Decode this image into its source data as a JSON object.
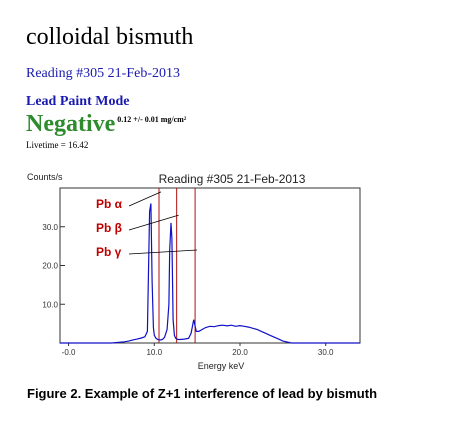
{
  "sample": {
    "name": "colloidal bismuth",
    "reading": "Reading #305 21-Feb-2013",
    "mode": "Lead Paint Mode",
    "result": "Negative",
    "result_value": "0.12 +/- 0.01 mg/cm²",
    "livetime": "Livetime = 16.42"
  },
  "caption": "Figure 2. Example of Z+1 interference of lead by bismuth",
  "colors": {
    "spectrum": "#1010c8",
    "markers": "#b01010",
    "labels": "#c00000",
    "result": "#2e8b2e"
  },
  "chart_data": {
    "type": "line",
    "title": "Reading #305 21-Feb-2013",
    "ylabel": "Counts/s",
    "xlabel": "Energy keV",
    "xlim": [
      -1,
      34
    ],
    "ylim": [
      0,
      40
    ],
    "xticks": [
      "-0.0",
      "10.0",
      "20.0",
      "30.0"
    ],
    "yticks": [
      "10.0",
      "20.0",
      "30.0"
    ],
    "grid": false,
    "markers_kev": [
      10.55,
      12.61,
      14.76
    ],
    "annotations": [
      {
        "text": "Pb α",
        "target_kev": 10.55,
        "target_y": 39
      },
      {
        "text": "Pb β",
        "target_kev": 12.61,
        "target_y": 33
      },
      {
        "text": "Pb γ",
        "target_kev": 14.76,
        "target_y": 24
      }
    ],
    "series": [
      {
        "x": [
          -1.0,
          5.0,
          6.5,
          7.0,
          7.5,
          8.0,
          8.5,
          8.9,
          9.2,
          9.45,
          9.6,
          9.75,
          9.9,
          10.0,
          10.2,
          10.4,
          10.6,
          10.8,
          11.0,
          11.2,
          11.5,
          11.7,
          11.8,
          11.95,
          12.05,
          12.2,
          12.35,
          12.5,
          12.65,
          12.8,
          13.0,
          13.5,
          14.0,
          14.3,
          14.6,
          14.9,
          15.2,
          15.6,
          16.0,
          16.5,
          17.0,
          17.5,
          18.0,
          18.5,
          19.0,
          19.5,
          20.0,
          20.5,
          21.0,
          21.5,
          22.0,
          22.5,
          23.0,
          23.5,
          24.0,
          24.5,
          25.0,
          26.0,
          34.0
        ],
        "y": [
          0,
          0,
          0.3,
          0.5,
          0.8,
          1.0,
          1.3,
          1.6,
          3.0,
          34.0,
          36.0,
          16.0,
          4.0,
          2.0,
          1.2,
          0.9,
          0.8,
          0.8,
          1.0,
          1.5,
          3.5,
          10.0,
          24.0,
          31.0,
          27.0,
          6.0,
          2.0,
          1.2,
          1.0,
          0.9,
          0.9,
          1.0,
          1.2,
          2.5,
          6.0,
          3.0,
          3.0,
          3.5,
          4.0,
          4.3,
          4.2,
          4.5,
          4.6,
          4.4,
          4.6,
          4.3,
          4.5,
          4.3,
          4.1,
          3.8,
          3.5,
          3.0,
          2.5,
          2.0,
          1.5,
          1.0,
          0.5,
          0,
          0
        ]
      }
    ]
  }
}
